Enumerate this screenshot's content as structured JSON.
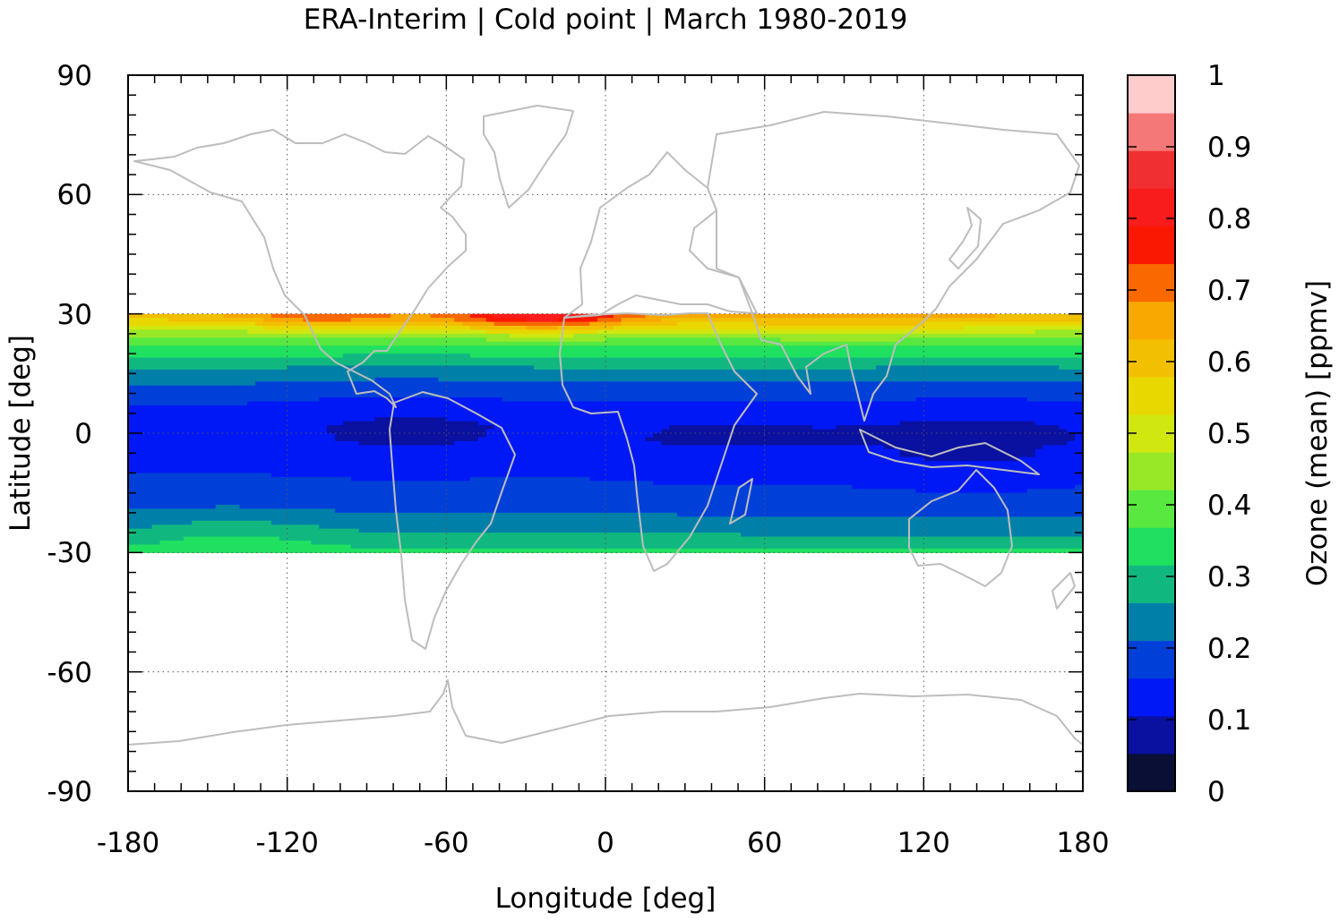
{
  "title": "ERA-Interim | Cold point | March 1980-2019",
  "chart_data": {
    "type": "heatmap",
    "title": "ERA-Interim | Cold point | March 1980-2019",
    "xlabel": "Longitude [deg]",
    "ylabel": "Latitude [deg]",
    "xlim": [
      -180,
      180
    ],
    "ylim": [
      -90,
      90
    ],
    "x_ticks": [
      "-180",
      "-120",
      "-60",
      "0",
      "60",
      "120",
      "180"
    ],
    "y_ticks": [
      "90",
      "60",
      "30",
      "0",
      "-30",
      "-60",
      "-90"
    ],
    "grid": true,
    "data_lat_range": [
      -30,
      30
    ],
    "colorbar": {
      "label": "Ozone (mean) [ppmv]",
      "range": [
        0,
        1
      ],
      "ticks": [
        "0",
        "0.1",
        "0.2",
        "0.3",
        "0.4",
        "0.5",
        "0.6",
        "0.7",
        "0.8",
        "0.9",
        "1"
      ],
      "colors": [
        "#0a0f35",
        "#0a10a0",
        "#0018f5",
        "#0040d8",
        "#0080a8",
        "#10b880",
        "#20e060",
        "#58e840",
        "#98e828",
        "#d0e810",
        "#e8d800",
        "#f2c000",
        "#f8a800",
        "#fa6800",
        "#fa1800",
        "#f81c1c",
        "#f03030",
        "#f47878",
        "#ffcccc"
      ]
    },
    "zonal_mean_profile": {
      "lat": [
        30,
        28,
        26,
        24,
        22,
        20,
        18,
        16,
        14,
        12,
        10,
        8,
        6,
        4,
        2,
        0,
        -2,
        -4,
        -6,
        -8,
        -10,
        -12,
        -14,
        -16,
        -18,
        -20,
        -22,
        -24,
        -26,
        -28,
        -30
      ],
      "ozone_ppmv": [
        0.63,
        0.56,
        0.48,
        0.42,
        0.37,
        0.33,
        0.29,
        0.26,
        0.23,
        0.21,
        0.19,
        0.17,
        0.15,
        0.14,
        0.13,
        0.13,
        0.13,
        0.14,
        0.14,
        0.15,
        0.16,
        0.17,
        0.18,
        0.19,
        0.2,
        0.21,
        0.23,
        0.25,
        0.27,
        0.3,
        0.33
      ]
    }
  }
}
